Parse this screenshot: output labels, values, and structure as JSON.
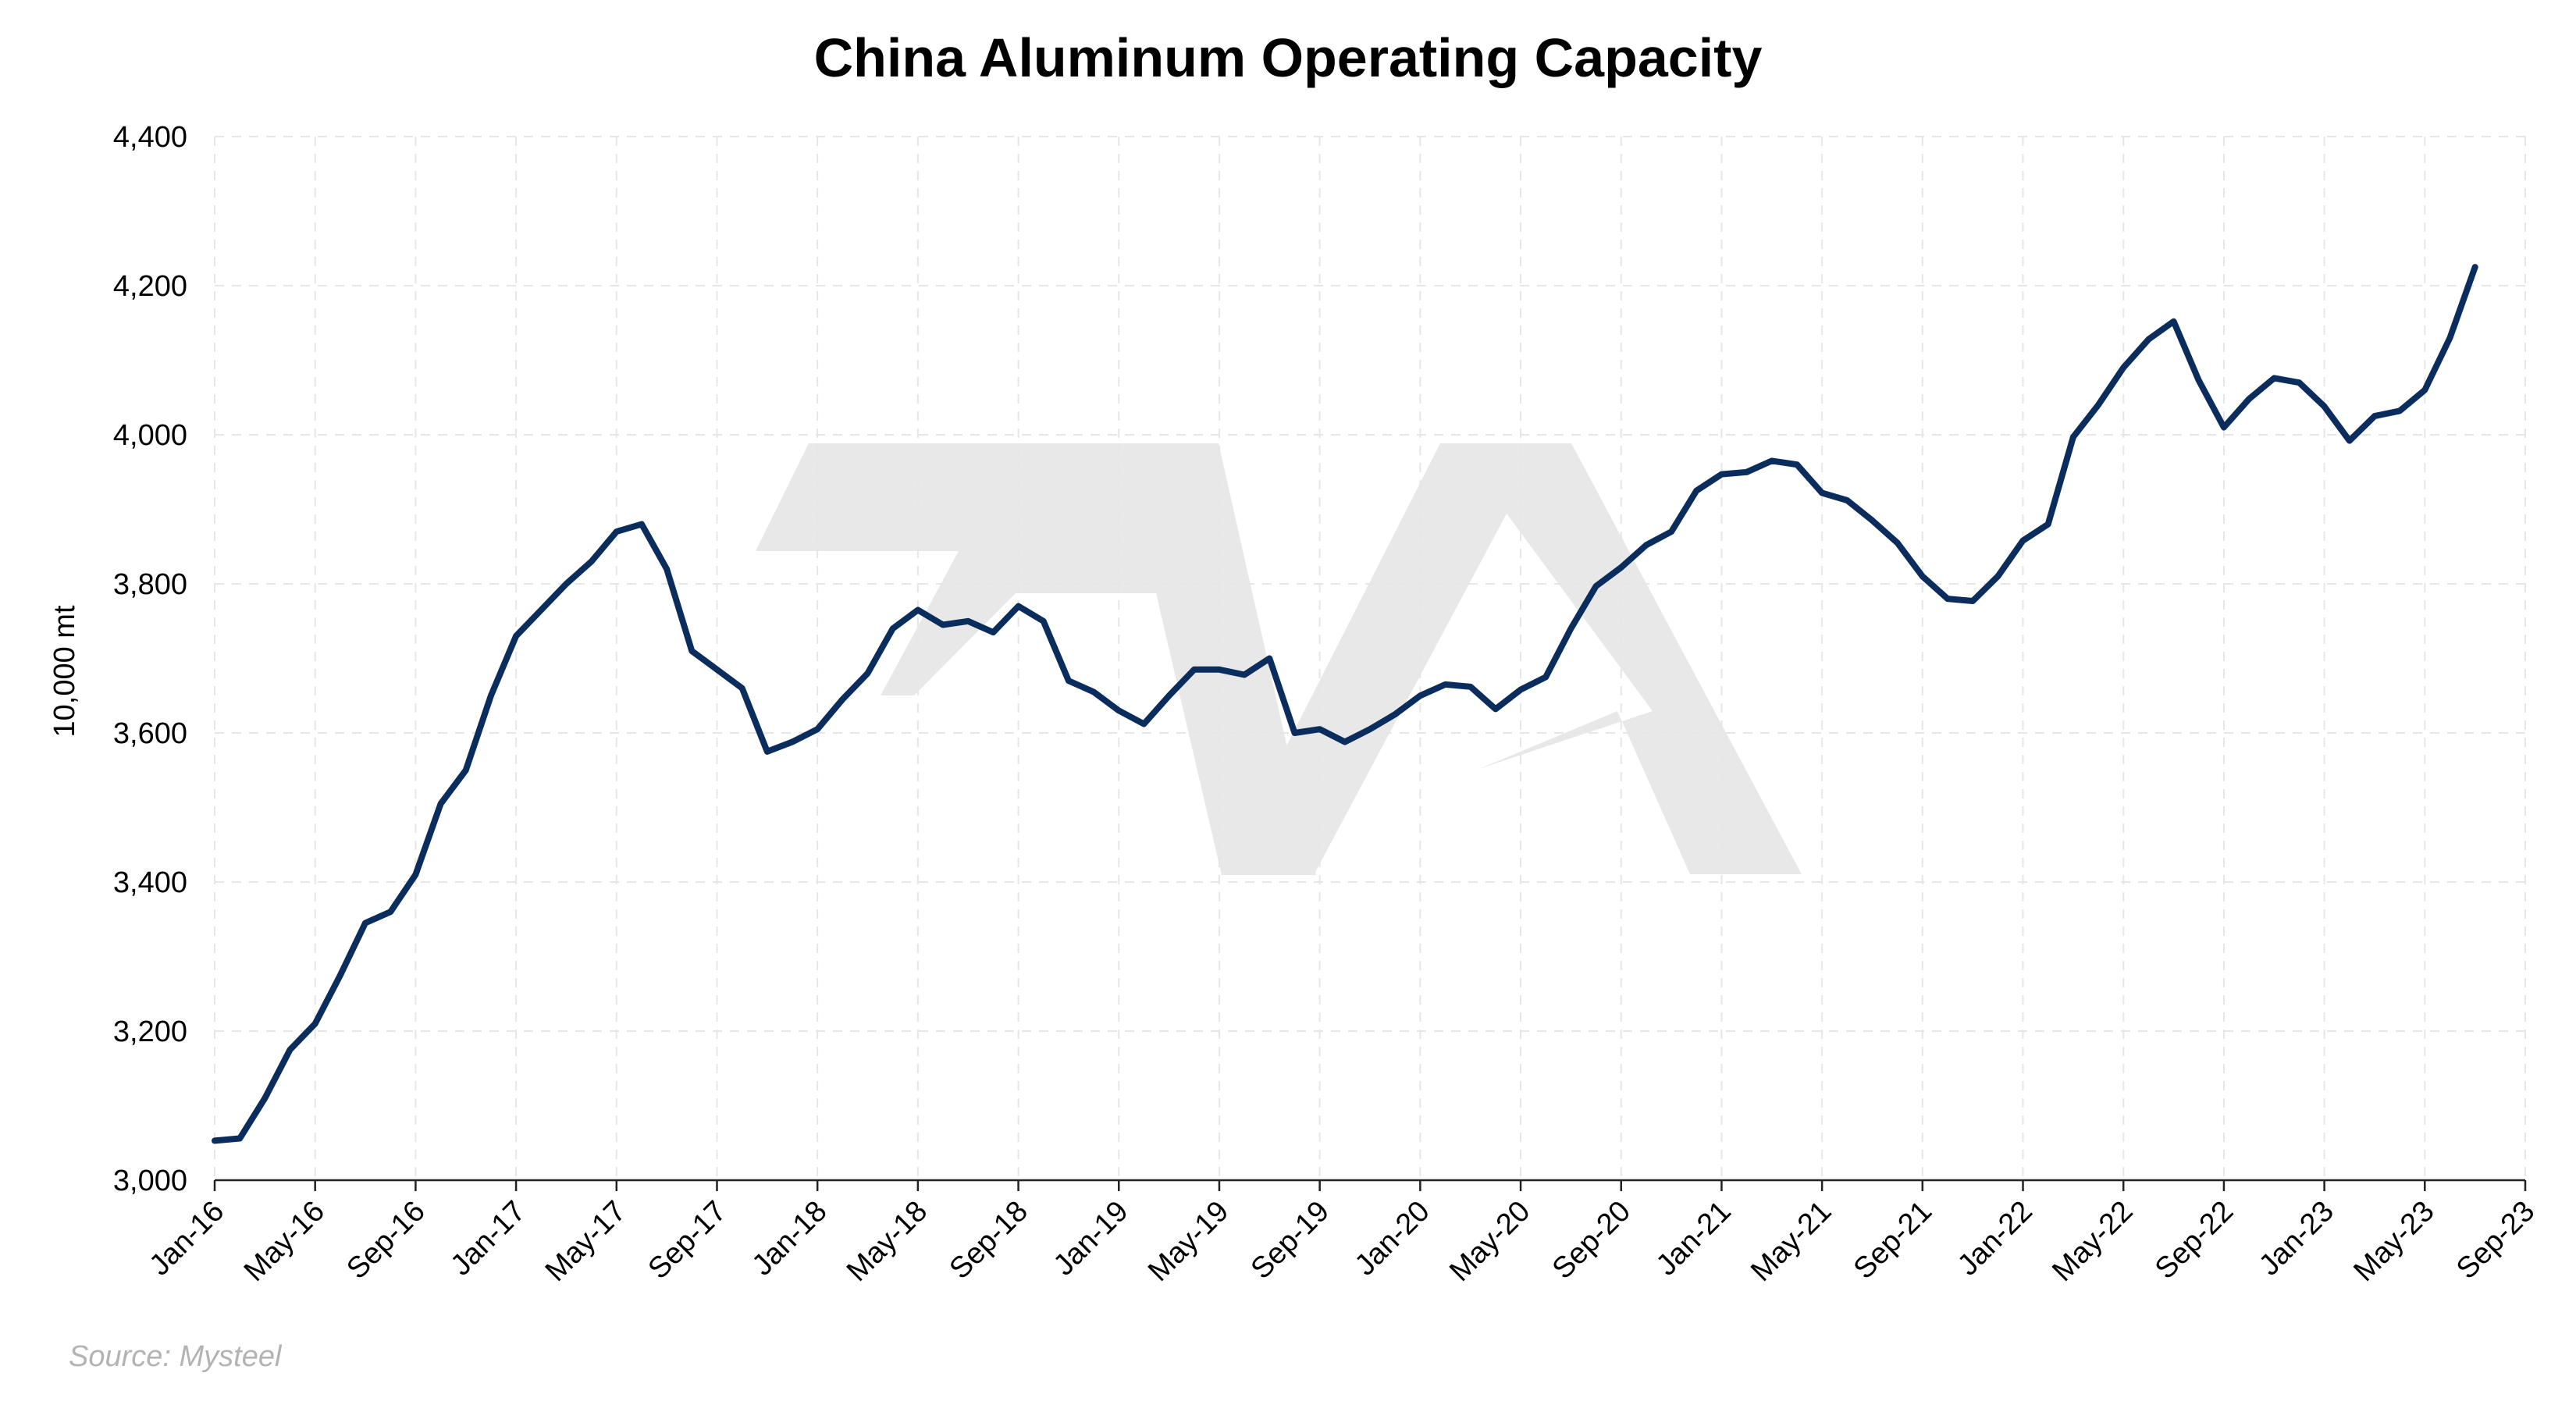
{
  "chart_data": {
    "type": "line",
    "title": "China Aluminum Operating Capacity",
    "xlabel": "",
    "ylabel": "10,000 mt",
    "ylim": [
      3000,
      4400
    ],
    "yticks": [
      "3,000",
      "3,200",
      "3,400",
      "3,600",
      "3,800",
      "4,000",
      "4,200",
      "4,400"
    ],
    "xticks": [
      "Jan-16",
      "May-16",
      "Sep-16",
      "Jan-17",
      "May-17",
      "Sep-17",
      "Jan-18",
      "May-18",
      "Sep-18",
      "Jan-19",
      "May-19",
      "Sep-19",
      "Jan-20",
      "May-20",
      "Sep-20",
      "Jan-21",
      "May-21",
      "Sep-21",
      "Jan-22",
      "May-22",
      "Sep-22",
      "Jan-23",
      "May-23",
      "Sep-23"
    ],
    "x_start": "Jan-16",
    "x_end": "Sep-23",
    "grid": true,
    "line_color": "#0b2d5e",
    "source": "Source: Mysteel",
    "series": [
      {
        "values": [
          3053,
          3056,
          3110,
          3175,
          3210,
          3275,
          3345,
          3360,
          3410,
          3505,
          3550,
          3650,
          3730,
          3765,
          3800,
          3830,
          3870,
          3880,
          3820,
          3710,
          3685,
          3660,
          3575,
          3588,
          3605,
          3645,
          3680,
          3740,
          3765,
          3745,
          3750,
          3735,
          3770,
          3750,
          3670,
          3655,
          3630,
          3612,
          3650,
          3685,
          3685,
          3678,
          3700,
          3600,
          3605,
          3588,
          3605,
          3625,
          3650,
          3665,
          3662,
          3632,
          3658,
          3675,
          3740,
          3797,
          3822,
          3852,
          3870,
          3925,
          3947,
          3950,
          3965,
          3960,
          3922,
          3912,
          3885,
          3855,
          3810,
          3780,
          3777,
          3810,
          3858,
          3880,
          3997,
          4040,
          4090,
          4128,
          4152,
          4073,
          4010,
          4048,
          4076,
          4070,
          4038,
          3992,
          4025,
          4032,
          4060,
          4130,
          4225
        ]
      }
    ]
  }
}
